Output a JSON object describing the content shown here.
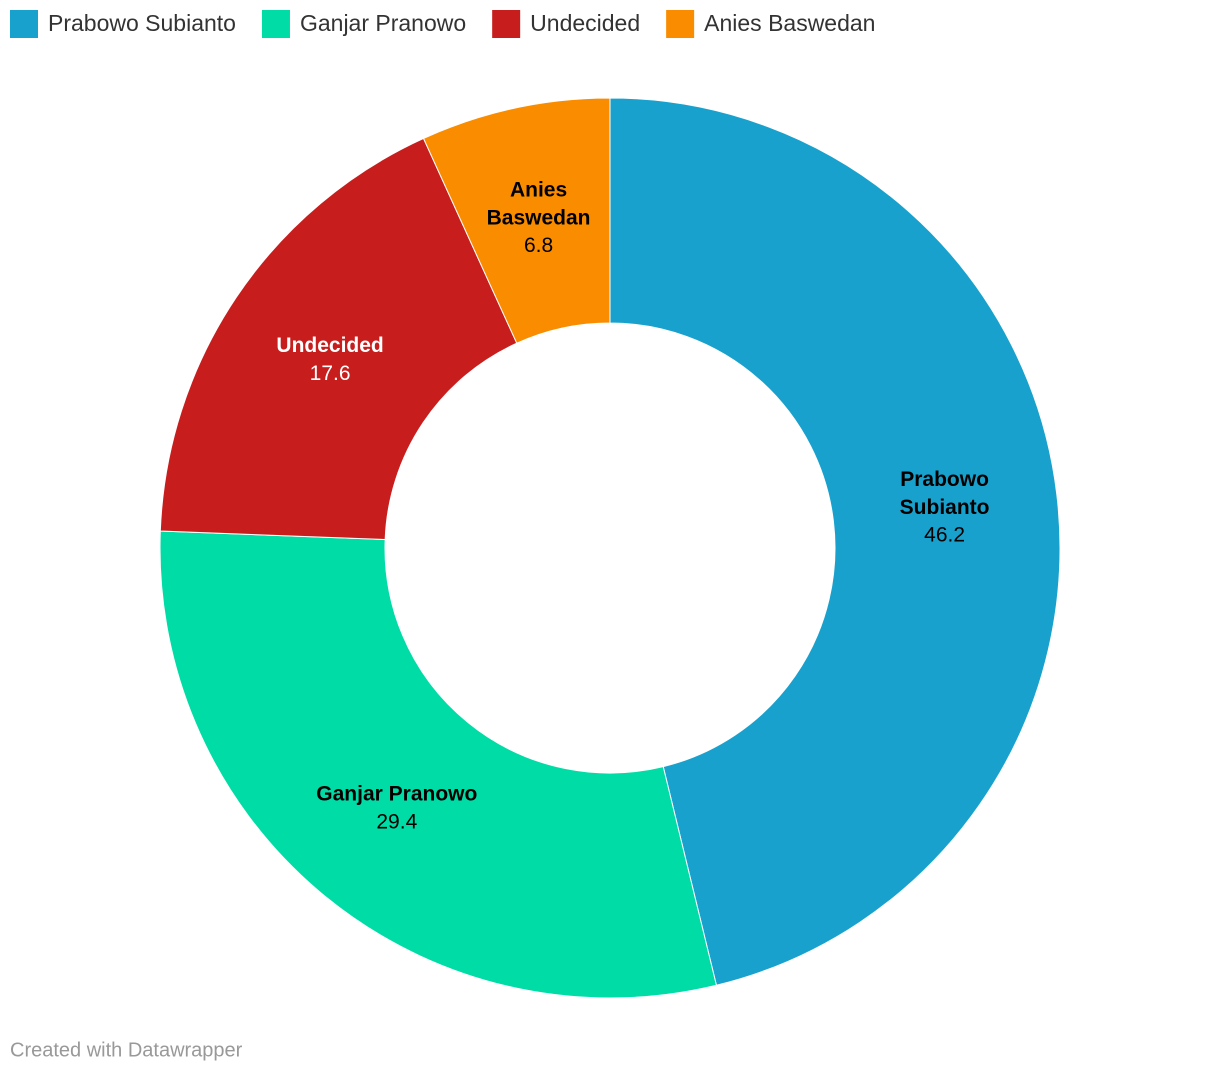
{
  "chart_data": {
    "type": "donut",
    "categories": [
      "Prabowo Subianto",
      "Ganjar Pranowo",
      "Undecided",
      "Anies Baswedan"
    ],
    "values": [
      46.2,
      29.4,
      17.6,
      6.8
    ],
    "colors": [
      "#18a1cd",
      "#00dca6",
      "#c71e1d",
      "#fa8c00"
    ],
    "label_colors": [
      "#000000",
      "#000000",
      "#ffffff",
      "#000000"
    ],
    "credit": "Created with Datawrapper"
  }
}
